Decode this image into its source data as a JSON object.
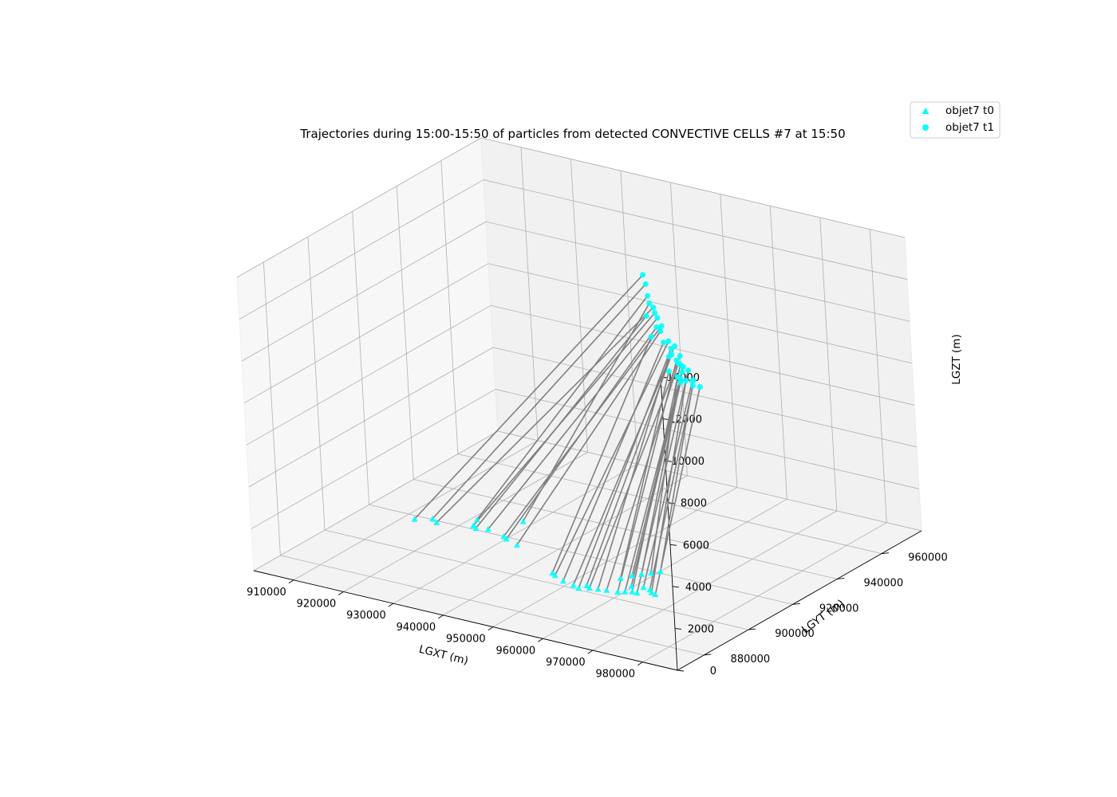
{
  "chart_data": {
    "type": "scatter",
    "projection": "3d",
    "title": "Trajectories during 15:00-15:50 of particles from detected CONVECTIVE CELLS #7 at 15:50",
    "xlabel": "LGXT (m)",
    "ylabel": "LGYT (m)",
    "zlabel": "LGZT (m)",
    "xticks": [
      "910000",
      "920000",
      "930000",
      "940000",
      "950000",
      "960000",
      "970000",
      "980000"
    ],
    "yticks": [
      "880000",
      "900000",
      "920000",
      "940000",
      "960000"
    ],
    "zticks": [
      "0",
      "2000",
      "4000",
      "6000",
      "8000",
      "10000",
      "12000",
      "14000"
    ],
    "xlim": [
      902000,
      987000
    ],
    "ylim": [
      868000,
      978000
    ],
    "zlim": [
      0,
      14000
    ],
    "grid": true,
    "legend_position": "top-right",
    "colors": {
      "markers": "#00ffff",
      "trajectory": "#808080"
    },
    "series": [
      {
        "name": "objet7 t0",
        "marker": "triangle"
      },
      {
        "name": "objet7 t1",
        "marker": "circle"
      }
    ],
    "trajectories": [
      {
        "t0": [
          912000,
          918000,
          0
        ],
        "t1": [
          951000,
          940000,
          12500
        ]
      },
      {
        "t0": [
          914500,
          920500,
          0
        ],
        "t1": [
          951000,
          941000,
          12000
        ]
      },
      {
        "t0": [
          921000,
          926000,
          0
        ],
        "t1": [
          951500,
          940500,
          11500
        ]
      },
      {
        "t0": [
          928000,
          931000,
          0
        ],
        "t1": [
          952000,
          940000,
          11200
        ]
      },
      {
        "t0": [
          916000,
          919000,
          0
        ],
        "t1": [
          952500,
          940500,
          11000
        ]
      },
      {
        "t0": [
          922000,
          922000,
          0
        ],
        "t1": [
          953000,
          940000,
          10800
        ]
      },
      {
        "t0": [
          923000,
          921000,
          0
        ],
        "t1": [
          951500,
          939500,
          10600
        ]
      },
      {
        "t0": [
          925000,
          922000,
          0
        ],
        "t1": [
          953000,
          941000,
          10500
        ]
      },
      {
        "t0": [
          929000,
          920000,
          0
        ],
        "t1": [
          954000,
          940500,
          10200
        ]
      },
      {
        "t0": [
          930000,
          919000,
          0
        ],
        "t1": [
          952500,
          941500,
          10000
        ]
      },
      {
        "t0": [
          933000,
          917000,
          0
        ],
        "t1": [
          953500,
          941000,
          9900
        ]
      },
      {
        "t0": [
          945000,
          906000,
          0
        ],
        "t1": [
          952000,
          940000,
          9600
        ]
      },
      {
        "t0": [
          946000,
          905000,
          0
        ],
        "t1": [
          955000,
          941000,
          9500
        ]
      },
      {
        "t0": [
          948500,
          903000,
          0
        ],
        "t1": [
          953500,
          942000,
          9300
        ]
      },
      {
        "t0": [
          951000,
          902000,
          0
        ],
        "t1": [
          955500,
          942500,
          9200
        ]
      },
      {
        "t0": [
          952500,
          901000,
          0
        ],
        "t1": [
          954500,
          943000,
          9000
        ]
      },
      {
        "t0": [
          953000,
          903500,
          0
        ],
        "t1": [
          955000,
          942000,
          8800
        ]
      },
      {
        "t0": [
          954000,
          902500,
          0
        ],
        "t1": [
          956000,
          943500,
          8700
        ]
      },
      {
        "t0": [
          955500,
          903000,
          0
        ],
        "t1": [
          954000,
          943000,
          8600
        ]
      },
      {
        "t0": [
          957000,
          903500,
          0
        ],
        "t1": [
          956500,
          941500,
          8500
        ]
      },
      {
        "t0": [
          959000,
          904000,
          0
        ],
        "t1": [
          955000,
          944000,
          8400
        ]
      },
      {
        "t0": [
          960000,
          905000,
          0
        ],
        "t1": [
          957000,
          942500,
          8300
        ]
      },
      {
        "t0": [
          961000,
          906000,
          0
        ],
        "t1": [
          955500,
          944500,
          8200
        ]
      },
      {
        "t0": [
          962000,
          906000,
          0
        ],
        "t1": [
          957500,
          943500,
          8100
        ]
      },
      {
        "t0": [
          956000,
          912000,
          0
        ],
        "t1": [
          954500,
          941500,
          8000
        ]
      },
      {
        "t0": [
          957000,
          915000,
          0
        ],
        "t1": [
          956000,
          944000,
          7900
        ]
      },
      {
        "t0": [
          958000,
          917000,
          0
        ],
        "t1": [
          957000,
          941000,
          7800
        ]
      },
      {
        "t0": [
          959000,
          919000,
          0
        ],
        "t1": [
          955500,
          943000,
          7700
        ]
      },
      {
        "t0": [
          960000,
          921000,
          0
        ],
        "t1": [
          958000,
          944500,
          7600
        ]
      },
      {
        "t0": [
          959500,
          909000,
          0
        ],
        "t1": [
          956500,
          942000,
          7550
        ]
      },
      {
        "t0": [
          961500,
          910000,
          0
        ],
        "t1": [
          957500,
          945000,
          7500
        ]
      },
      {
        "t0": [
          963000,
          909500,
          0
        ],
        "t1": [
          958500,
          943000,
          7450
        ]
      },
      {
        "t0": [
          964000,
          908000,
          0
        ],
        "t1": [
          956000,
          945500,
          7400
        ]
      },
      {
        "t0": [
          965000,
          907500,
          0
        ],
        "t1": [
          959000,
          945000,
          7300
        ]
      }
    ]
  }
}
